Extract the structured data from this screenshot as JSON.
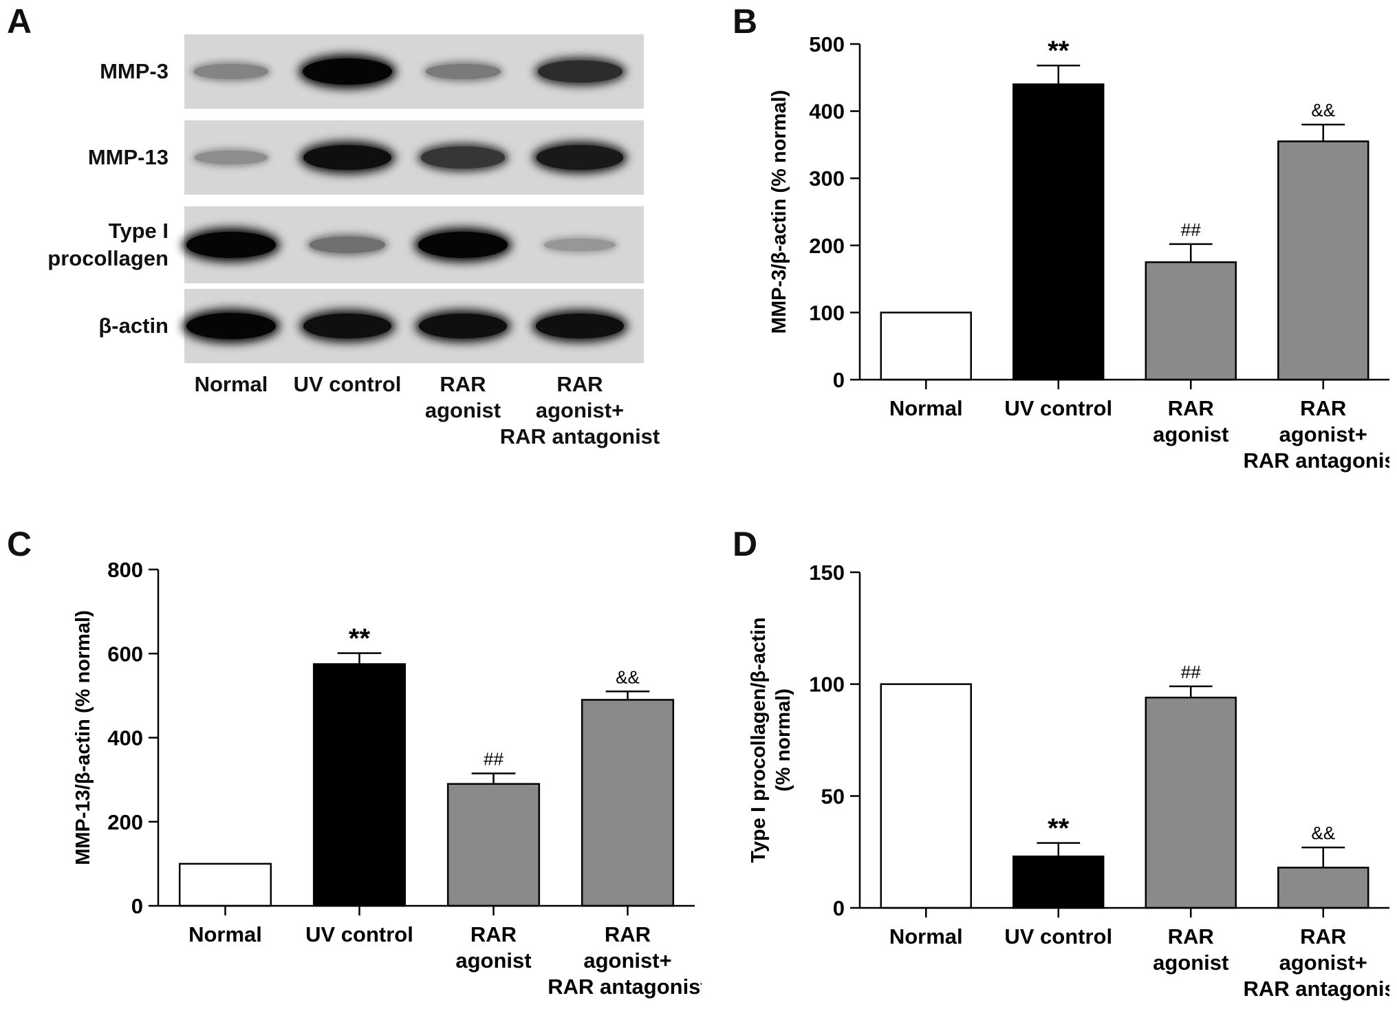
{
  "panels": {
    "A": "A",
    "B": "B",
    "C": "C",
    "D": "D"
  },
  "blot": {
    "rows": [
      {
        "label": "MMP-3",
        "intensity": [
          0.35,
          1.0,
          0.4,
          0.8
        ]
      },
      {
        "label": "MMP-13",
        "intensity": [
          0.3,
          0.95,
          0.75,
          0.9
        ]
      },
      {
        "label": "Type I\nprocollagen",
        "intensity": [
          1.0,
          0.45,
          1.0,
          0.25
        ]
      },
      {
        "label": "β-actin",
        "intensity": [
          1.0,
          0.95,
          0.95,
          0.95
        ]
      }
    ],
    "lanes": [
      "Normal",
      "UV control",
      "RAR\nagonist",
      "RAR\nagonist+\nRAR antagonist"
    ]
  },
  "chart_data": [
    {
      "type": "bar",
      "panel": "B",
      "categories": [
        "Normal",
        "UV control",
        "RAR\nagonist",
        "RAR\nagonist+\nRAR antagonist"
      ],
      "values": [
        100,
        440,
        175,
        355
      ],
      "errors": [
        0,
        28,
        27,
        25
      ],
      "annotations": [
        "",
        "**",
        "##",
        "&&"
      ],
      "fills": [
        "#ffffff",
        "#000000",
        "#8a8a8a",
        "#8a8a8a"
      ],
      "ylabel": "MMP-3/β-actin (% normal)",
      "ylim": [
        0,
        500
      ],
      "yticks": [
        0,
        100,
        200,
        300,
        400,
        500
      ]
    },
    {
      "type": "bar",
      "panel": "C",
      "categories": [
        "Normal",
        "UV control",
        "RAR\nagonist",
        "RAR\nagonist+\nRAR antagonist"
      ],
      "values": [
        100,
        575,
        290,
        490
      ],
      "errors": [
        0,
        26,
        25,
        20
      ],
      "annotations": [
        "",
        "**",
        "##",
        "&&"
      ],
      "fills": [
        "#ffffff",
        "#000000",
        "#8a8a8a",
        "#8a8a8a"
      ],
      "ylabel": "MMP-13/β-actin (% normal)",
      "ylim": [
        0,
        800
      ],
      "yticks": [
        0,
        200,
        400,
        600,
        800
      ]
    },
    {
      "type": "bar",
      "panel": "D",
      "categories": [
        "Normal",
        "UV control",
        "RAR\nagonist",
        "RAR\nagonist+\nRAR antagonist"
      ],
      "values": [
        100,
        23,
        94,
        18
      ],
      "errors": [
        0,
        6,
        5,
        9
      ],
      "annotations": [
        "",
        "**",
        "##",
        "&&"
      ],
      "fills": [
        "#ffffff",
        "#000000",
        "#8a8a8a",
        "#8a8a8a"
      ],
      "ylabel": "Type I procollagen/β-actin\n(% normal)",
      "ylim": [
        0,
        150
      ],
      "yticks": [
        0,
        50,
        100,
        150
      ]
    }
  ]
}
